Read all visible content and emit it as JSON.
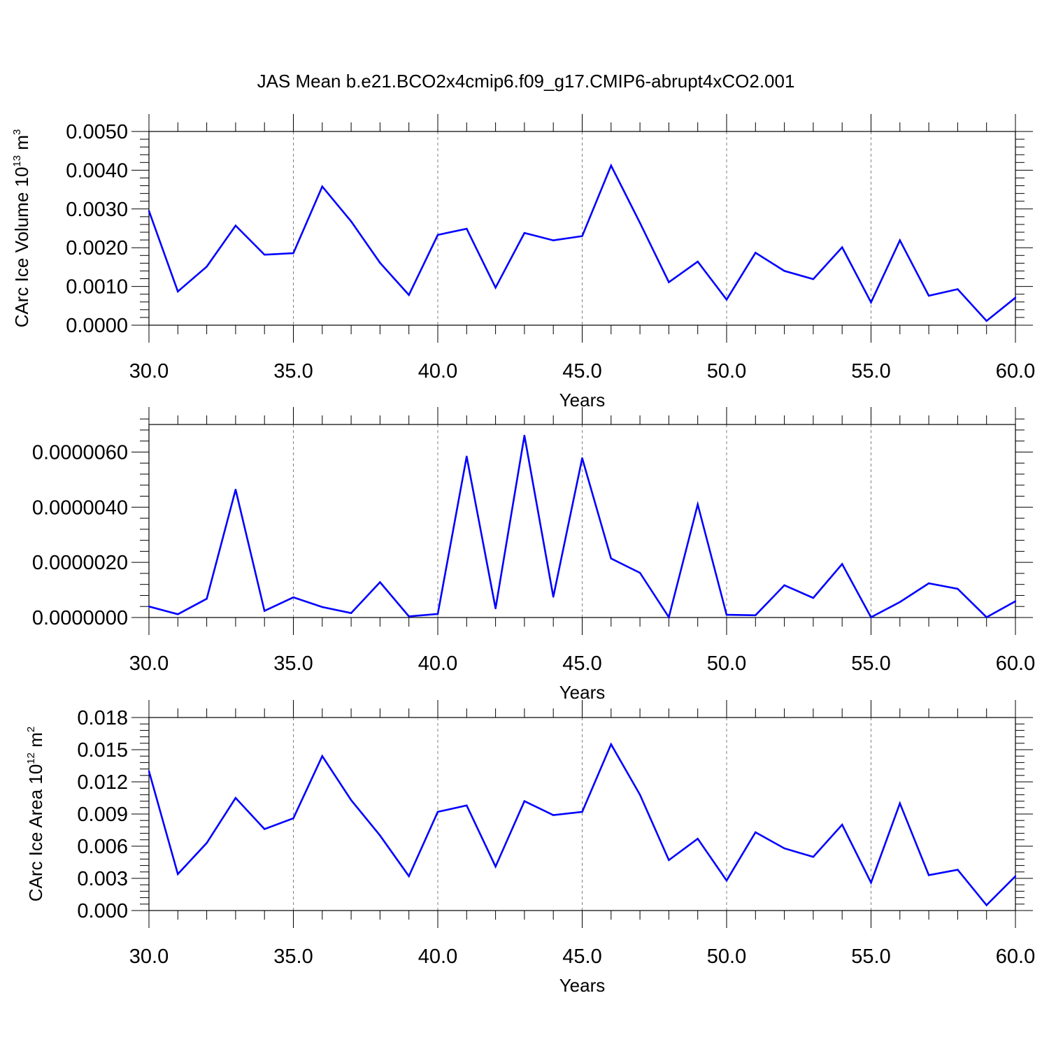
{
  "title": "JAS Mean b.e21.BCO2x4cmip6.f09_g17.CMIP6-abrupt4xCO2.001",
  "colors": {
    "series": "#0000ff",
    "axis": "#000000",
    "grid": "#7f7f7f"
  },
  "chart_data": [
    {
      "type": "line",
      "ylabel": {
        "text": "CArc Ice Volume 10",
        "sup1": "13",
        "mid": " m",
        "sup2": "3"
      },
      "xlabel": "Years",
      "xlim": [
        30,
        60
      ],
      "ylim": [
        0,
        0.005
      ],
      "yticks": [
        "0.0000",
        "0.0010",
        "0.0020",
        "0.0030",
        "0.0040",
        "0.0050"
      ],
      "xticks": [
        "30.0",
        "35.0",
        "40.0",
        "45.0",
        "50.0",
        "55.0",
        "60.0"
      ],
      "x": [
        30,
        31,
        32,
        33,
        34,
        35,
        36,
        37,
        38,
        39,
        40,
        41,
        42,
        43,
        44,
        45,
        46,
        47,
        48,
        49,
        50,
        51,
        52,
        53,
        54,
        55,
        56,
        57,
        58,
        59,
        60
      ],
      "values": [
        0.00295,
        0.00087,
        0.00151,
        0.00257,
        0.00182,
        0.00186,
        0.00358,
        0.00268,
        0.00161,
        0.00078,
        0.00233,
        0.00249,
        0.00097,
        0.00238,
        0.00219,
        0.0023,
        0.00412,
        0.00264,
        0.00111,
        0.00164,
        0.00066,
        0.00187,
        0.0014,
        0.00119,
        0.00201,
        0.00059,
        0.00219,
        0.00076,
        0.00093,
        0.00011,
        0.00071
      ]
    },
    {
      "type": "line",
      "ylabel": null,
      "xlabel": "Years",
      "xlim": [
        30,
        60
      ],
      "ylim": [
        0,
        7e-06
      ],
      "yticks": [
        "0.0000000",
        "0.0000020",
        "0.0000040",
        "0.0000060"
      ],
      "xticks": [
        "30.0",
        "35.0",
        "40.0",
        "45.0",
        "50.0",
        "55.0",
        "60.0"
      ],
      "x": [
        30,
        31,
        32,
        33,
        34,
        35,
        36,
        37,
        38,
        39,
        40,
        41,
        42,
        43,
        44,
        45,
        46,
        47,
        48,
        49,
        50,
        51,
        52,
        53,
        54,
        55,
        56,
        57,
        58,
        59,
        60
      ],
      "values": [
        4e-07,
        1.2e-07,
        6.8e-07,
        4.64e-06,
        2.4e-07,
        7.3e-07,
        3.8e-07,
        1.6e-07,
        1.28e-06,
        4e-08,
        1.3e-07,
        5.84e-06,
        3.3e-07,
        6.6e-06,
        7.5e-07,
        5.78e-06,
        2.14e-06,
        1.62e-06,
        1e-08,
        4.1e-06,
        1e-07,
        8e-08,
        1.17e-06,
        7.1e-07,
        1.94e-06,
        1e-08,
        5.6e-07,
        1.24e-06,
        1.04e-06,
        1e-08,
        5.9e-07
      ]
    },
    {
      "type": "line",
      "ylabel": {
        "text": "CArc Ice Area 10",
        "sup1": "12",
        "mid": " m",
        "sup2": "2"
      },
      "xlabel": "Years",
      "xlim": [
        30,
        60
      ],
      "ylim": [
        0,
        0.018
      ],
      "yticks": [
        "0.000",
        "0.003",
        "0.006",
        "0.009",
        "0.012",
        "0.015",
        "0.018"
      ],
      "xticks": [
        "30.0",
        "35.0",
        "40.0",
        "45.0",
        "50.0",
        "55.0",
        "60.0"
      ],
      "x": [
        30,
        31,
        32,
        33,
        34,
        35,
        36,
        37,
        38,
        39,
        40,
        41,
        42,
        43,
        44,
        45,
        46,
        47,
        48,
        49,
        50,
        51,
        52,
        53,
        54,
        55,
        56,
        57,
        58,
        59,
        60
      ],
      "values": [
        0.013,
        0.0034,
        0.0063,
        0.0105,
        0.0076,
        0.0086,
        0.0144,
        0.0103,
        0.007,
        0.0032,
        0.0092,
        0.0098,
        0.0041,
        0.0102,
        0.0089,
        0.0092,
        0.0155,
        0.0108,
        0.0047,
        0.0067,
        0.0028,
        0.0073,
        0.0058,
        0.005,
        0.008,
        0.0026,
        0.01,
        0.0033,
        0.0038,
        0.0005,
        0.0032
      ]
    }
  ]
}
